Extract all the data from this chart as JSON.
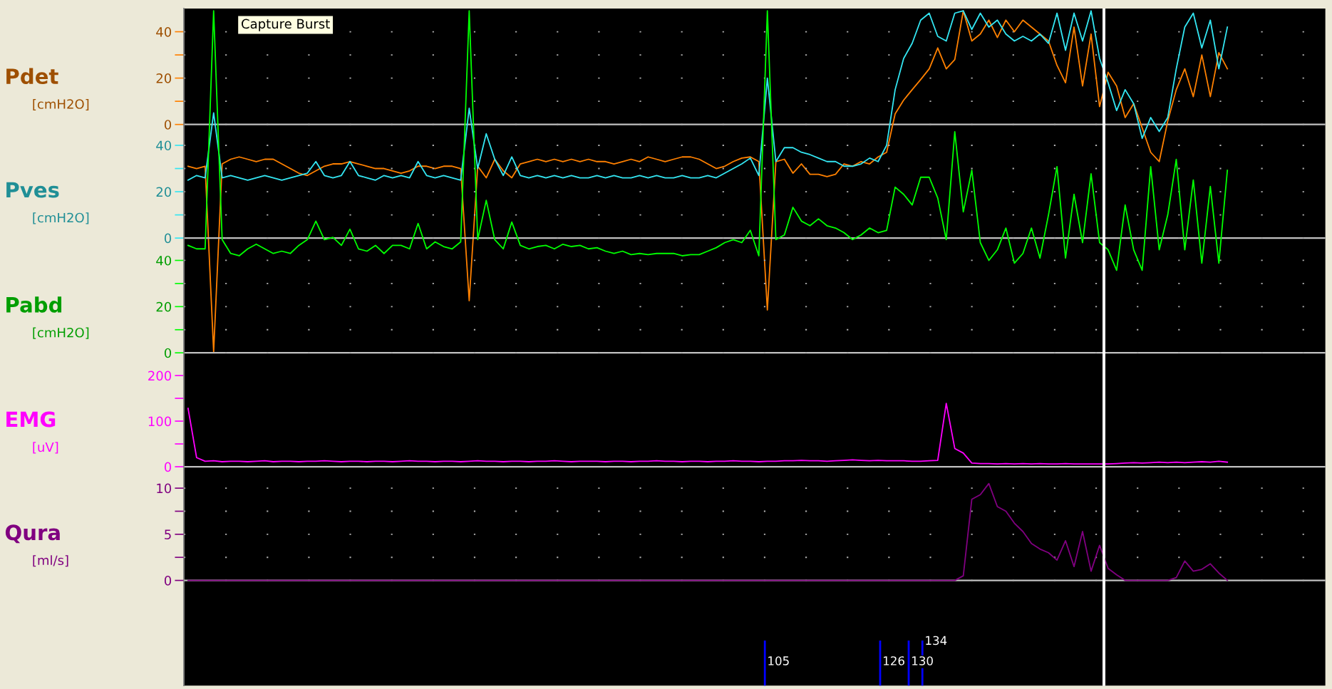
{
  "chart_data": [
    {
      "type": "line",
      "ylabel": "Pdet",
      "annotations": [
        "[cmH2O]",
        "Capture Burst"
      ],
      "tick_labels": "y",
      "grid": "y",
      "categories": [
        null,
        null,
        null,
        null,
        null,
        null,
        null,
        null,
        null,
        null,
        null,
        null,
        null,
        null,
        null,
        null,
        null,
        null,
        null,
        null,
        null,
        null,
        null,
        null,
        null,
        null,
        null,
        null,
        null,
        null,
        null,
        null,
        null,
        null,
        null,
        null,
        null,
        null,
        null,
        null,
        null,
        null,
        null,
        null,
        null,
        null,
        null,
        null,
        null,
        null,
        null,
        null,
        null,
        null,
        null,
        null,
        null,
        null,
        null,
        null,
        null,
        null,
        null,
        null,
        null,
        null,
        null,
        null,
        null,
        null,
        null,
        null,
        null,
        null,
        null,
        null,
        null,
        null,
        null,
        null,
        null,
        null,
        null,
        null,
        null,
        null,
        null,
        null,
        null,
        null,
        null,
        null,
        null,
        null,
        null,
        null,
        null,
        null,
        null,
        null,
        null,
        null,
        null,
        null,
        null,
        null,
        null,
        null,
        null,
        null,
        null,
        null,
        null,
        null,
        null,
        null,
        null,
        null,
        null,
        null,
        null,
        null,
        null,
        null,
        null,
        null,
        null,
        null,
        null,
        null,
        null,
        null,
        null,
        null
      ],
      "ylim": [
        -242,
        50
      ],
      "yticks": [
        0,
        {
          "value": 10,
          "label": null
        },
        20,
        {
          "value": 30,
          "label": null
        },
        40
      ],
      "ref_lines": [
        {
          "axis": "y",
          "value": 0,
          "color": "#c0c0c0"
        }
      ],
      "series": [
        {
          "color": "#ff8000",
          "values": [
            -18,
            -19,
            -18,
            -98,
            -17,
            -15,
            -14,
            -15,
            -16,
            -15,
            -15,
            -17,
            -19,
            -21,
            -22,
            -20,
            -18,
            -17,
            -17,
            -16,
            -17,
            -18,
            -19,
            -19,
            -20,
            -21,
            -20,
            -18,
            -18,
            -19,
            -18,
            -18,
            -19,
            -76,
            -18,
            -23,
            -15,
            -20,
            -23,
            -17,
            -16,
            -15,
            -16,
            -15,
            -16,
            -15,
            -16,
            -15,
            -16,
            -16,
            -17,
            -16,
            -15,
            -16,
            -14,
            -15,
            -16,
            -15,
            -14,
            -14,
            -15,
            -17,
            -19,
            -18,
            -16,
            -14.5,
            -14,
            -16,
            -80,
            -16,
            -15,
            -21,
            -17,
            -21.5,
            -21.5,
            -22.5,
            -21.5,
            -17,
            -18,
            -16,
            -17,
            -14,
            -12,
            4.6,
            10.5,
            15,
            19.4,
            24,
            33,
            24,
            28,
            49,
            36,
            39,
            45,
            37.5,
            45,
            40,
            45,
            42,
            39,
            36,
            25.5,
            18,
            42,
            16.6,
            39,
            7.7,
            22.5,
            16.6,
            3,
            9,
            -1.5,
            -12,
            -16,
            1.5,
            15,
            24,
            12,
            30,
            12,
            31,
            24,
            null,
            null,
            null,
            null,
            null,
            null,
            null,
            null,
            null,
            null,
            null
          ]
        }
      ]
    },
    {
      "type": "line",
      "ylabel": "Pves",
      "annotations": [
        "[cmH2O]"
      ],
      "tick_labels": "y",
      "grid": "y",
      "categories": [
        null,
        null,
        null,
        null,
        null,
        null,
        null,
        null,
        null,
        null,
        null,
        null,
        null,
        null,
        null,
        null,
        null,
        null,
        null,
        null,
        null,
        null,
        null,
        null,
        null,
        null,
        null,
        null,
        null,
        null,
        null,
        null,
        null,
        null,
        null,
        null,
        null,
        null,
        null,
        null,
        null,
        null,
        null,
        null,
        null,
        null,
        null,
        null,
        null,
        null,
        null,
        null,
        null,
        null,
        null,
        null,
        null,
        null,
        null,
        null,
        null,
        null,
        null,
        null,
        null,
        null,
        null,
        null,
        null,
        null,
        null,
        null,
        null,
        null,
        null,
        null,
        null,
        null,
        null,
        null,
        null,
        null,
        null,
        null,
        null,
        null,
        null,
        null,
        null,
        null,
        null,
        null,
        null,
        null,
        null,
        null,
        null,
        null,
        null,
        null,
        null,
        null,
        null,
        null,
        null,
        null,
        null,
        null,
        null,
        null,
        null,
        null,
        null,
        null,
        null,
        null,
        null,
        null,
        null,
        null,
        null,
        null,
        null,
        null,
        null,
        null,
        null,
        null,
        null,
        null,
        null,
        null,
        null,
        null
      ],
      "ylim": [
        -193,
        99
      ],
      "yticks": [
        0,
        {
          "value": 10,
          "label": null
        },
        20,
        {
          "value": 30,
          "label": null
        },
        40
      ],
      "ref_lines": [
        {
          "axis": "y",
          "value": 0,
          "color": "#c0c0c0"
        }
      ],
      "series": [
        {
          "color": "#33e6f2",
          "values": [
            25,
            27,
            26,
            54,
            26,
            27,
            26,
            25,
            26,
            27,
            26,
            25,
            26,
            27,
            28,
            33,
            27,
            26,
            27,
            33,
            27,
            26,
            25,
            27,
            26,
            27,
            26,
            33,
            27,
            26,
            27,
            26,
            25,
            56,
            30,
            45,
            34,
            27,
            35,
            27,
            26,
            27,
            26,
            27,
            26,
            27,
            26,
            26,
            27,
            26,
            27,
            26,
            26,
            27,
            26,
            27,
            26,
            26,
            27,
            26,
            26,
            27,
            26,
            28,
            30,
            32,
            34.5,
            27,
            69,
            33,
            39,
            39,
            37,
            36,
            34.5,
            33,
            33,
            31,
            31,
            32,
            34.5,
            33,
            40,
            64,
            77.5,
            84,
            94,
            97,
            87,
            85,
            97,
            98,
            90,
            97,
            91,
            94,
            88,
            85,
            87,
            85,
            88,
            84,
            97,
            81,
            97,
            85,
            98,
            77.5,
            67,
            55,
            64,
            58,
            43,
            52,
            46,
            52,
            73,
            91,
            97,
            82,
            94,
            73,
            91,
            null,
            null,
            null,
            null,
            null,
            null,
            null,
            null,
            null,
            null,
            null
          ]
        }
      ]
    },
    {
      "type": "line",
      "ylabel": "Pabd",
      "annotations": [
        "[cmH2O]"
      ],
      "tick_labels": "y",
      "grid": "y",
      "categories": [
        null,
        null,
        null,
        null,
        null,
        null,
        null,
        null,
        null,
        null,
        null,
        null,
        null,
        null,
        null,
        null,
        null,
        null,
        null,
        null,
        null,
        null,
        null,
        null,
        null,
        null,
        null,
        null,
        null,
        null,
        null,
        null,
        null,
        null,
        null,
        null,
        null,
        null,
        null,
        null,
        null,
        null,
        null,
        null,
        null,
        null,
        null,
        null,
        null,
        null,
        null,
        null,
        null,
        null,
        null,
        null,
        null,
        null,
        null,
        null,
        null,
        null,
        null,
        null,
        null,
        null,
        null,
        null,
        null,
        null,
        null,
        null,
        null,
        null,
        null,
        null,
        null,
        null,
        null,
        null,
        null,
        null,
        null,
        null,
        null,
        null,
        null,
        null,
        null,
        null,
        null,
        null,
        null,
        null,
        null,
        null,
        null,
        null,
        null,
        null,
        null,
        null,
        null,
        null,
        null,
        null,
        null,
        null,
        null,
        null,
        null,
        null,
        null,
        null,
        null,
        null,
        null,
        null,
        null,
        null,
        null,
        null,
        null,
        null,
        null,
        null,
        null,
        null,
        null,
        null,
        null,
        null,
        null,
        null
      ],
      "ylim": [
        -144,
        149
      ],
      "yticks": [
        0,
        {
          "value": 10,
          "label": null
        },
        20,
        {
          "value": 30,
          "label": null
        },
        40
      ],
      "ref_lines": [
        {
          "axis": "y",
          "value": 0,
          "color": "#c0c0c0"
        }
      ],
      "series": [
        {
          "color": "#00ff00",
          "values": [
            46.5,
            45,
            45,
            148,
            49,
            43,
            42,
            45,
            47,
            45,
            43,
            44,
            43,
            46.5,
            49,
            57,
            49,
            50,
            46.5,
            53.5,
            45,
            44,
            46.5,
            43,
            46.5,
            46.5,
            45,
            56,
            45,
            48,
            46,
            45,
            48,
            148,
            49,
            66,
            49,
            45,
            56.6,
            46.5,
            45,
            46,
            46.5,
            45,
            47,
            46,
            46.5,
            45,
            45.5,
            44,
            43,
            44,
            42.5,
            43,
            42.5,
            43,
            43,
            43,
            42,
            42.5,
            42.5,
            44,
            45.5,
            47.7,
            49,
            47.7,
            53,
            42,
            148,
            49,
            51,
            63,
            57,
            55,
            58,
            55,
            54,
            52,
            49,
            51,
            54,
            52,
            53,
            71.7,
            68.6,
            64,
            76,
            76,
            67,
            49,
            95.7,
            61,
            79,
            47.7,
            40,
            44.6,
            54,
            38.8,
            43,
            54,
            41,
            59.7,
            80.6,
            41,
            68.6,
            47.7,
            77.5,
            47.7,
            44.6,
            35.7,
            64,
            44.6,
            35.7,
            80.6,
            44.6,
            59.7,
            83.7,
            44.6,
            74.8,
            38.8,
            72,
            38.8,
            79,
            null,
            null,
            null,
            null,
            null,
            null,
            null,
            null,
            null,
            null,
            null
          ]
        }
      ]
    },
    {
      "type": "line",
      "ylabel": "EMG",
      "annotations": [
        "[uV]"
      ],
      "tick_labels": "y",
      "categories": [
        null,
        null,
        null,
        null,
        null,
        null,
        null,
        null,
        null,
        null,
        null,
        null,
        null,
        null,
        null,
        null,
        null,
        null,
        null,
        null,
        null,
        null,
        null,
        null,
        null,
        null,
        null,
        null,
        null,
        null,
        null,
        null,
        null,
        null,
        null,
        null,
        null,
        null,
        null,
        null,
        null,
        null,
        null,
        null,
        null,
        null,
        null,
        null,
        null,
        null,
        null,
        null,
        null,
        null,
        null,
        null,
        null,
        null,
        null,
        null,
        null,
        null,
        null,
        null,
        null,
        null,
        null,
        null,
        null,
        null,
        null,
        null,
        null,
        null,
        null,
        null,
        null,
        null,
        null,
        null,
        null,
        null,
        null,
        null,
        null,
        null,
        null,
        null,
        null,
        null,
        null,
        null,
        null,
        null,
        null,
        null,
        null,
        null,
        null,
        null,
        null,
        null,
        null,
        null,
        null,
        null,
        null,
        null,
        null,
        null,
        null,
        null,
        null,
        null,
        null,
        null,
        null,
        null,
        null,
        null,
        null,
        null,
        null,
        null,
        null,
        null,
        null,
        null,
        null,
        null,
        null,
        null,
        null,
        null
      ],
      "ylim": [
        -480,
        1005
      ],
      "yticks": [
        0,
        {
          "value": 50,
          "label": null
        },
        100,
        {
          "value": 150,
          "label": null
        },
        200
      ],
      "ref_lines": [
        {
          "axis": "y",
          "value": 0,
          "color": "#c0c0c0"
        }
      ],
      "series": [
        {
          "color": "#ff00ff",
          "values": [
            128,
            20,
            12,
            13,
            11,
            12,
            12,
            11,
            12,
            13,
            11,
            12,
            12,
            11,
            12,
            12,
            13,
            12,
            11,
            12,
            12,
            11,
            12,
            12,
            11,
            12,
            13,
            12,
            12,
            11,
            12,
            12,
            11,
            12,
            13,
            12,
            12,
            11,
            12,
            12,
            11,
            12,
            12,
            13,
            12,
            11,
            12,
            12,
            12,
            11,
            12,
            12,
            11,
            12,
            12,
            13,
            12,
            12,
            11,
            12,
            12,
            11,
            12,
            12,
            13,
            12,
            12,
            11,
            12,
            12,
            13,
            13,
            14,
            13,
            13,
            12,
            13,
            14,
            15,
            14,
            13,
            14,
            13,
            13,
            13,
            12,
            12,
            13,
            14,
            139,
            40,
            30,
            8,
            7,
            7,
            6,
            7,
            6,
            7,
            6,
            7,
            6,
            6,
            7,
            6,
            6,
            6,
            6,
            6,
            7,
            8,
            9,
            8,
            9,
            10,
            9,
            10,
            9,
            10,
            11,
            10,
            12,
            10,
            null,
            null,
            null,
            null,
            null,
            null,
            null,
            null,
            null,
            null,
            null
          ]
        }
      ]
    },
    {
      "type": "line",
      "ylabel": "Qura",
      "annotations": [
        "[ml/s]",
        "105",
        "126",
        "130",
        "134"
      ],
      "tick_labels": "y",
      "grid": "y",
      "categories": [
        null,
        null,
        null,
        null,
        null,
        null,
        null,
        null,
        null,
        null,
        null,
        null,
        null,
        null,
        null,
        null,
        null,
        null,
        null,
        null,
        null,
        null,
        null,
        null,
        null,
        null,
        null,
        null,
        null,
        null,
        null,
        null,
        null,
        null,
        null,
        null,
        null,
        null,
        null,
        null,
        null,
        null,
        null,
        null,
        null,
        null,
        null,
        null,
        null,
        null,
        null,
        null,
        null,
        null,
        null,
        null,
        null,
        null,
        null,
        null,
        null,
        null,
        null,
        null,
        null,
        null,
        null,
        null,
        null,
        null,
        null,
        null,
        null,
        null,
        null,
        null,
        null,
        null,
        null,
        null,
        null,
        null,
        null,
        null,
        null,
        null,
        null,
        null,
        null,
        null,
        null,
        null,
        null,
        null,
        null,
        null,
        null,
        null,
        null,
        null,
        null,
        null,
        null,
        null,
        null,
        null,
        null,
        null,
        null,
        null,
        null,
        null,
        null,
        null,
        null,
        null,
        null,
        null,
        null,
        null,
        null,
        null,
        null,
        null,
        null,
        null,
        null,
        null,
        null,
        null,
        null,
        null,
        null,
        null
      ],
      "ylim": [
        -11.4,
        62
      ],
      "yticks": [
        0,
        {
          "value": 2.5,
          "label": null
        },
        5,
        {
          "value": 7.5,
          "label": null
        },
        10
      ],
      "ref_lines": [
        {
          "axis": "y",
          "value": 0,
          "color": "#c0c0c0"
        }
      ],
      "series": [
        {
          "color": "#800080",
          "values": [
            0,
            0,
            0,
            0,
            0,
            0,
            0,
            0,
            0,
            0,
            0,
            0,
            0,
            0,
            0,
            0,
            0,
            0,
            0,
            0,
            0,
            0,
            0,
            0,
            0,
            0,
            0,
            0,
            0,
            0,
            0,
            0,
            0,
            0,
            0,
            0,
            0,
            0,
            0,
            0,
            0,
            0,
            0,
            0,
            0,
            0,
            0,
            0,
            0,
            0,
            0,
            0,
            0,
            0,
            0,
            0,
            0,
            0,
            0,
            0,
            0,
            0,
            0,
            0,
            0,
            0,
            0,
            0,
            0,
            0,
            0,
            0,
            0,
            0,
            0,
            0,
            0,
            0,
            0,
            0,
            0,
            0,
            0,
            0,
            0,
            0,
            0,
            0,
            0,
            0,
            0,
            0.5,
            8.8,
            9.3,
            10.5,
            8,
            7.5,
            6.2,
            5.3,
            4,
            3.4,
            3,
            2.2,
            4.3,
            1.5,
            5.3,
            1,
            3.8,
            1.3,
            0.6,
            0,
            0,
            0,
            0,
            0,
            0,
            0.3,
            2.1,
            1,
            1.2,
            1.8,
            0.8,
            0,
            null,
            null,
            null,
            null,
            null,
            null,
            null,
            null,
            null,
            null,
            null
          ]
        }
      ]
    }
  ]
}
